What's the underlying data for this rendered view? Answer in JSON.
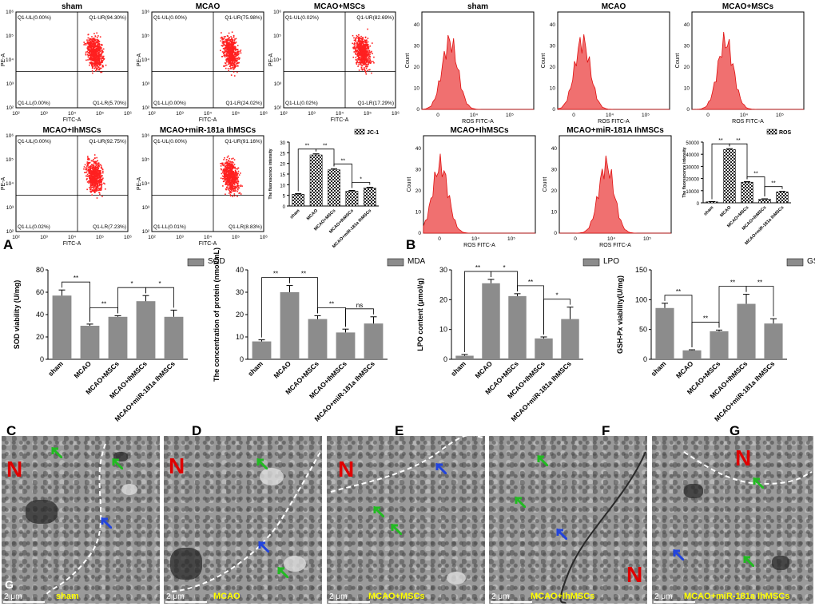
{
  "colors": {
    "dots": "#ff2020",
    "hist_fill": "#f07070",
    "hist_stroke": "#e01010",
    "bar": "#8c8c8c",
    "em_caption": "#ffff00",
    "nucleus_label": "#e00000",
    "arrow_green": "#22bb22",
    "arrow_blue": "#2244dd"
  },
  "panel_letters": {
    "A": "A",
    "B": "B",
    "C": "C",
    "D": "D",
    "E": "E",
    "F": "F",
    "G": "G"
  },
  "flow": {
    "xlabel": "FITC-A",
    "ylabel": "PE-A",
    "ticks_x": [
      "10²",
      "10³",
      "10⁴",
      "10⁵",
      "10⁶"
    ],
    "ticks_y": [
      "10²",
      "10³",
      "10⁴",
      "10⁵",
      "10⁶"
    ],
    "panels": [
      {
        "title": "sham",
        "ul": "Q1-UL(0.00%)",
        "ur": "Q1-UR(94.30%)",
        "ll": "Q1-LL(0.00%)",
        "lr": "Q1-LR(5.70%)"
      },
      {
        "title": "MCAO",
        "ul": "Q1-UL(0.00%)",
        "ur": "Q1-UR(75.98%)",
        "ll": "Q1-LL(0.00%)",
        "lr": "Q1-LR(24.02%)"
      },
      {
        "title": "MCAO+MSCs",
        "ul": "Q1-UL(0.02%)",
        "ur": "Q1-UR(82.69%)",
        "ll": "Q1-LL(0.02%)",
        "lr": "Q1-LR(17.29%)"
      },
      {
        "title": "MCAO+IhMSCs",
        "ul": "Q1-UL(0.00%)",
        "ur": "Q1-UR(92.75%)",
        "ll": "Q1-LL(0.02%)",
        "lr": "Q1-LR(7.23%)"
      },
      {
        "title": "MCAO+miR-181a IhMSCs",
        "ul": "Q1-UL(0.00%)",
        "ur": "Q1-UR(91.16%)",
        "ll": "Q1-LL(0.01%)",
        "lr": "Q1-LR(8.83%)"
      }
    ]
  },
  "hist": {
    "xlabel": "ROS FITC-A",
    "ylabel": "Count",
    "ticks_x": [
      "0",
      "10⁴",
      "10⁵"
    ],
    "ticks_y": [
      "0",
      "10",
      "20",
      "30",
      "40"
    ],
    "panels": [
      {
        "title": "sham"
      },
      {
        "title": "MCAO"
      },
      {
        "title": "MCAO+MSCs"
      },
      {
        "title": "MCAO+IhMSCs"
      },
      {
        "title": "MCAO+miR-181A IhMSCs"
      }
    ]
  },
  "chart_data": [
    {
      "type": "bar",
      "title": "JC-1",
      "legend": "JC-1",
      "ylabel": "The fluorescence intensity",
      "ylim": [
        0,
        30
      ],
      "yticks": [
        0,
        5,
        10,
        15,
        20,
        25,
        30
      ],
      "categories": [
        "sham",
        "MCAO",
        "MCAO+MSCs",
        "MCAO+IhMSCs",
        "MCAO+miR-181a IhMSCs"
      ],
      "values": [
        5.5,
        24,
        17,
        7,
        8.5
      ],
      "errors": [
        0.3,
        0.5,
        0.5,
        0.3,
        0.3
      ],
      "sig": [
        {
          "a": 0,
          "b": 1,
          "label": "**"
        },
        {
          "a": 1,
          "b": 2,
          "label": "**"
        },
        {
          "a": 2,
          "b": 3,
          "label": "**"
        },
        {
          "a": 3,
          "b": 4,
          "label": "*"
        }
      ]
    },
    {
      "type": "bar",
      "title": "ROS",
      "legend": "ROS",
      "ylabel": "The fluorescence intensity",
      "ylim": [
        0,
        50000
      ],
      "yticks": [
        0,
        10000,
        20000,
        30000,
        40000,
        50000
      ],
      "categories": [
        "sham",
        "MCAO",
        "MCAO+MSCs",
        "MCAO+IhMSCs",
        "MCAO+miR-181a IhMSCs"
      ],
      "values": [
        800,
        44000,
        17000,
        3000,
        9000
      ],
      "errors": [
        200,
        600,
        400,
        300,
        400
      ],
      "sig": [
        {
          "a": 0,
          "b": 1,
          "label": "**"
        },
        {
          "a": 1,
          "b": 2,
          "label": "**"
        },
        {
          "a": 2,
          "b": 3,
          "label": "**"
        },
        {
          "a": 3,
          "b": 4,
          "label": "**"
        }
      ]
    },
    {
      "type": "bar",
      "title": "SOD",
      "legend": "SOD",
      "ylabel": "SOD viability (U/mg)",
      "ylim": [
        0,
        80
      ],
      "yticks": [
        0,
        20,
        40,
        60,
        80
      ],
      "categories": [
        "sham",
        "MCAO",
        "MCAO+MSCs",
        "MCAO+IhMSCs",
        "MCAO+miR-181a IhMSCs"
      ],
      "values": [
        57,
        30,
        38,
        52,
        38
      ],
      "errors": [
        5,
        1.5,
        1,
        5,
        6
      ],
      "sig": [
        {
          "a": 0,
          "b": 1,
          "label": "**"
        },
        {
          "a": 1,
          "b": 2,
          "label": "**"
        },
        {
          "a": 2,
          "b": 3,
          "label": "*"
        },
        {
          "a": 3,
          "b": 4,
          "label": "*"
        }
      ]
    },
    {
      "type": "bar",
      "title": "MDA",
      "legend": "MDA",
      "ylabel": "The concentration of protein (nmol/mL)",
      "ylim": [
        0,
        40
      ],
      "yticks": [
        0,
        10,
        20,
        30,
        40
      ],
      "categories": [
        "sham",
        "MCAO",
        "MCAO+MSCs",
        "MCAO+IhMSCs",
        "MCAO+miR-181a IhMSCs"
      ],
      "values": [
        8,
        30,
        18,
        12,
        16
      ],
      "errors": [
        0.7,
        3,
        1.5,
        1.5,
        3
      ],
      "sig": [
        {
          "a": 0,
          "b": 1,
          "label": "**"
        },
        {
          "a": 1,
          "b": 2,
          "label": "**"
        },
        {
          "a": 2,
          "b": 3,
          "label": "**"
        },
        {
          "a": 3,
          "b": 4,
          "label": "ns"
        }
      ]
    },
    {
      "type": "bar",
      "title": "LPO",
      "legend": "LPO",
      "ylabel": "LPO content (μmol/g)",
      "ylim": [
        0,
        30
      ],
      "yticks": [
        0,
        10,
        20,
        30
      ],
      "categories": [
        "sham",
        "MCAO",
        "MCAO+MSCs",
        "MCAO+IhMSCs",
        "MCAO+miR-181a IhMSCs"
      ],
      "values": [
        1.2,
        25.5,
        21.2,
        7,
        13.5
      ],
      "errors": [
        0.4,
        1.3,
        0.8,
        0.5,
        4
      ],
      "sig": [
        {
          "a": 0,
          "b": 1,
          "label": "**"
        },
        {
          "a": 1,
          "b": 2,
          "label": "*"
        },
        {
          "a": 2,
          "b": 3,
          "label": "**"
        },
        {
          "a": 3,
          "b": 4,
          "label": "*"
        }
      ]
    },
    {
      "type": "bar",
      "title": "GSH-Px",
      "legend": "GSH-Px",
      "ylabel": "GSH-Px viability(U/mg)",
      "ylim": [
        0,
        150
      ],
      "yticks": [
        0,
        50,
        100,
        150
      ],
      "categories": [
        "sham",
        "MCAO",
        "MCAO+MSCs",
        "MCAO+IhMSCs",
        "MCAO+miR-181a IhMSCs"
      ],
      "values": [
        86,
        15,
        47,
        93,
        60
      ],
      "errors": [
        8,
        1,
        2,
        16,
        8
      ],
      "sig": [
        {
          "a": 0,
          "b": 1,
          "label": "**"
        },
        {
          "a": 1,
          "b": 2,
          "label": "**"
        },
        {
          "a": 2,
          "b": 3,
          "label": "**"
        },
        {
          "a": 3,
          "b": 4,
          "label": "**"
        }
      ]
    }
  ],
  "em": [
    {
      "caption": "sham",
      "scale": "2 μm",
      "N": "N",
      "G": "G"
    },
    {
      "caption": "MCAO",
      "scale": "2 μm",
      "N": "N"
    },
    {
      "caption": "MCAO+MSCs",
      "scale": "2 μm",
      "N": "N"
    },
    {
      "caption": "MCAO+IhMSCs",
      "scale": "2 μm",
      "N": "N"
    },
    {
      "caption": "MCAO+miR-181a IhMSCs",
      "scale": "2 μm",
      "N": "N"
    }
  ]
}
